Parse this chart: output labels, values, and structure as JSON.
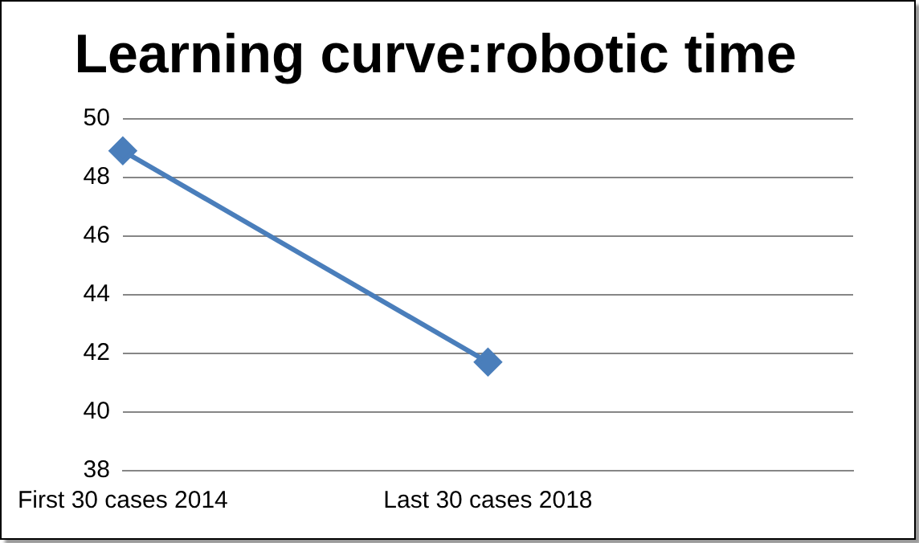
{
  "chart_data": {
    "type": "line",
    "title": "Learning curve:robotic time",
    "categories": [
      "First 30 cases 2014",
      "Last 30 cases 2018",
      null
    ],
    "series": [
      {
        "color": "#4a7ebb",
        "values": [
          48.9,
          41.7,
          null
        ]
      }
    ],
    "ylim": [
      38,
      50
    ],
    "yticks": [
      38,
      40,
      42,
      44,
      46,
      48,
      50
    ],
    "grid": "y",
    "legend": false,
    "marker": "diamond",
    "line_style": "solid"
  }
}
